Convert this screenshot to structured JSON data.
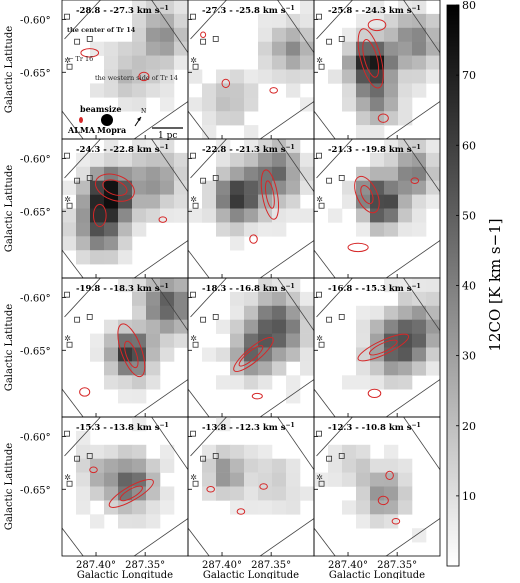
{
  "chart_data": {
    "type": "heatmap",
    "layout": "channel-map grid 4 rows x 3 columns",
    "xlabel": "Galactic Longitude",
    "ylabel": "Galactic Latitude",
    "x_ticks": [
      "287.40°",
      "287.35°"
    ],
    "y_ticks": [
      "-0.60°",
      "-0.65°"
    ],
    "colorbar": {
      "label": "12CO [K km s−1]",
      "ticks": [
        10,
        20,
        30,
        40,
        50,
        60,
        70,
        80
      ],
      "range": [
        0,
        80
      ],
      "colormap": "gray_r"
    },
    "contour_color": "#d62728",
    "panels": [
      {
        "velocity": "-28.8 - -27.3 km s",
        "peak": 38
      },
      {
        "velocity": "-27.3 - -25.8 km s",
        "peak": 35
      },
      {
        "velocity": "-25.8 - -24.3 km s",
        "peak": 70
      },
      {
        "velocity": "-24.3 - -22.8 km s",
        "peak": 75
      },
      {
        "velocity": "-22.8 - -21.3 km s",
        "peak": 60
      },
      {
        "velocity": "-21.3 - -19.8 km s",
        "peak": 55
      },
      {
        "velocity": "-19.8 - -18.3 km s",
        "peak": 62
      },
      {
        "velocity": "-18.3 - -16.8 km s",
        "peak": 50
      },
      {
        "velocity": "-16.8 - -15.3 km s",
        "peak": 50
      },
      {
        "velocity": "-15.3 - -13.8 km s",
        "peak": 45
      },
      {
        "velocity": "-13.8 - -12.3 km s",
        "peak": 30
      },
      {
        "velocity": "-12.3 - -10.8 km s",
        "peak": 30
      }
    ],
    "annotations": {
      "center": "the center of Tr 14",
      "tr16": "← Tr 16",
      "west": "the western side of Tr 14",
      "beamsize": "beamsize",
      "alma": "ALMA",
      "mopra": "Mopra",
      "scale": "1 pc",
      "north": "N"
    }
  }
}
